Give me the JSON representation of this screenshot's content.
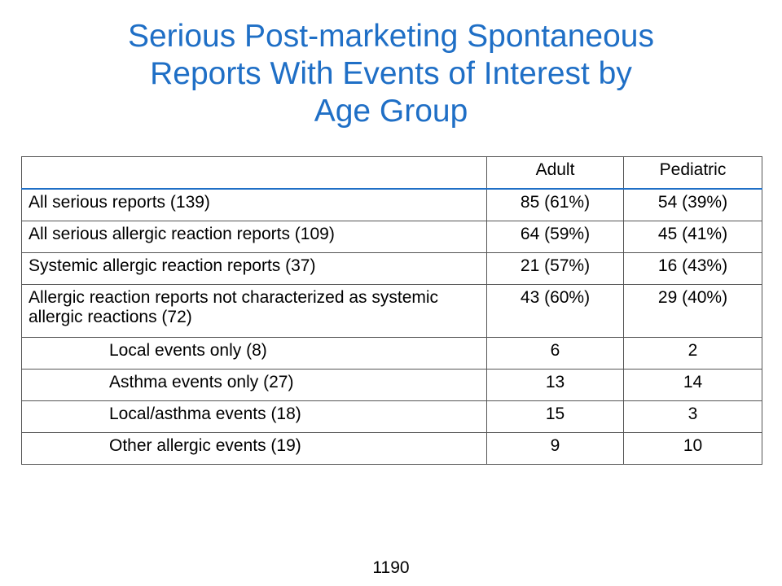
{
  "slide": {
    "title_lines": [
      "Serious Post-marketing Spontaneous",
      "Reports With Events of Interest by",
      "Age Group"
    ],
    "footer": "1190"
  },
  "table": {
    "columns": [
      "",
      "Adult",
      "Pediatric"
    ],
    "rows": [
      {
        "label": "All serious reports (139)",
        "adult": "85 (61%)",
        "pediatric": "54 (39%)"
      },
      {
        "label": "All serious allergic reaction reports (109)",
        "adult": "64 (59%)",
        "pediatric": "45 (41%)"
      },
      {
        "label": "Systemic allergic reaction reports (37)",
        "adult": "21 (57%)",
        "pediatric": "16 (43%)"
      },
      {
        "label": "Allergic reaction reports not characterized as systemic allergic reactions (72)",
        "adult": "43 (60%)",
        "pediatric": "29 (40%)"
      },
      {
        "label": "Local events only  (8)",
        "adult": "6",
        "pediatric": "2"
      },
      {
        "label": "Asthma events only  (27)",
        "adult": "13",
        "pediatric": "14"
      },
      {
        "label": "Local/asthma events (18)",
        "adult": "15",
        "pediatric": "3"
      },
      {
        "label": "Other allergic events  (19)",
        "adult": "9",
        "pediatric": "10"
      }
    ]
  }
}
